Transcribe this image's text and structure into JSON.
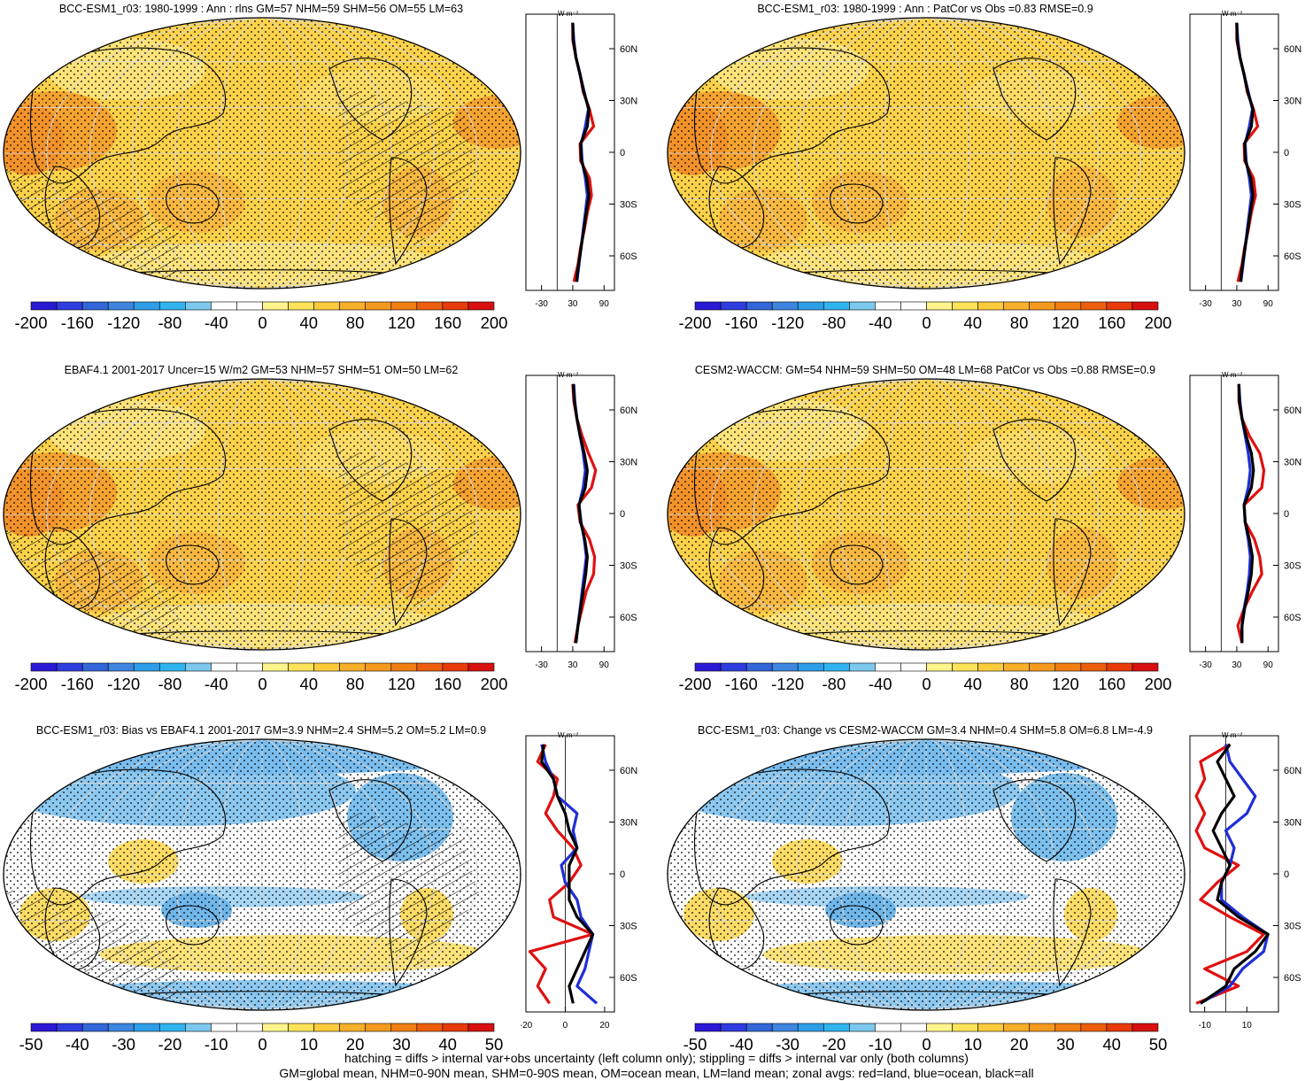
{
  "panels": [
    {
      "id": "p1",
      "title": "BCC-ESM1_r03: 1980-1999 : Ann : rlns GM=57 NHM=59 SHM=56 OM=55 LM=63",
      "field": "abs",
      "hatching": true,
      "colorbar_labels": [
        "-200",
        "-160",
        "-120",
        "-80",
        "-40",
        "0",
        "40",
        "80",
        "120",
        "160",
        "200"
      ],
      "zonal_units": "W m⁻²",
      "zonal_xticks": [
        "-30",
        "30",
        "90"
      ],
      "zonal_yticks": [
        "60N",
        "30N",
        "0",
        "30S",
        "60S"
      ]
    },
    {
      "id": "p2",
      "title": "BCC-ESM1_r03: 1980-1999 : Ann : PatCor vs Obs =0.83 RMSE=0.9",
      "field": "abs",
      "hatching": false,
      "colorbar_labels": [
        "-200",
        "-160",
        "-120",
        "-80",
        "-40",
        "0",
        "40",
        "80",
        "120",
        "160",
        "200"
      ],
      "zonal_units": "W m⁻²",
      "zonal_xticks": [
        "-30",
        "30",
        "90"
      ],
      "zonal_yticks": [
        "60N",
        "30N",
        "0",
        "30S",
        "60S"
      ]
    },
    {
      "id": "p3",
      "title": "EBAF4.1 2001-2017 Uncer=15 W/m2 GM=53 NHM=57 SHM=51 OM=50 LM=62",
      "field": "abs",
      "hatching": true,
      "colorbar_labels": [
        "-200",
        "-160",
        "-120",
        "-80",
        "-40",
        "0",
        "40",
        "80",
        "120",
        "160",
        "200"
      ],
      "zonal_units": "W m⁻²",
      "zonal_xticks": [
        "-30",
        "30",
        "90"
      ],
      "zonal_yticks": [
        "60N",
        "30N",
        "0",
        "30S",
        "60S"
      ]
    },
    {
      "id": "p4",
      "title": "CESM2-WACCM: GM=54 NHM=59 SHM=50 OM=48 LM=68 PatCor vs Obs =0.88 RMSE=0.9",
      "field": "abs",
      "hatching": false,
      "colorbar_labels": [
        "-200",
        "-160",
        "-120",
        "-80",
        "-40",
        "0",
        "40",
        "80",
        "120",
        "160",
        "200"
      ],
      "zonal_units": "W m⁻²",
      "zonal_xticks": [
        "-30",
        "30",
        "90"
      ],
      "zonal_yticks": [
        "60N",
        "30N",
        "0",
        "30S",
        "60S"
      ]
    },
    {
      "id": "p5",
      "title": "BCC-ESM1_r03: Bias vs EBAF4.1 2001-2017 GM=3.9 NHM=2.4 SHM=5.2 OM=5.2 LM=0.9",
      "field": "diff",
      "hatching": true,
      "colorbar_labels": [
        "-50",
        "-40",
        "-30",
        "-20",
        "-10",
        "0",
        "10",
        "20",
        "30",
        "40",
        "50"
      ],
      "zonal_units": "W m⁻²",
      "zonal_xticks": [
        "-20",
        "0",
        "20"
      ],
      "zonal_yticks": [
        "60N",
        "30N",
        "0",
        "30S",
        "60S"
      ]
    },
    {
      "id": "p6",
      "title": "BCC-ESM1_r03: Change vs CESM2-WACCM GM=3.4 NHM=0.4 SHM=5.8 OM=6.8 LM=-4.9",
      "field": "diff",
      "hatching": false,
      "colorbar_labels": [
        "-50",
        "-40",
        "-30",
        "-20",
        "-10",
        "0",
        "10",
        "20",
        "30",
        "40",
        "50"
      ],
      "zonal_units": "W m⁻²",
      "zonal_xticks": [
        "-10",
        "10"
      ],
      "zonal_yticks": [
        "60N",
        "30N",
        "0",
        "30S",
        "60S"
      ]
    }
  ],
  "colorbar_colors": [
    "#2b19d6",
    "#2f3ce0",
    "#3366d9",
    "#3d85de",
    "#2e9ee8",
    "#30b4f0",
    "#7cc8ee",
    "#ffffff",
    "#ffffff",
    "#fff48c",
    "#fde35a",
    "#fbcb3c",
    "#f8b02a",
    "#f59a1e",
    "#f07e12",
    "#ec5e0c",
    "#e83a0a",
    "#d81010"
  ],
  "chart_data": [
    {
      "type": "line",
      "panel": "p1",
      "title": "BCC-ESM1_r03: 1980-1999 : Ann : rlns GM=57 NHM=59 SHM=56 OM=55 LM=63",
      "ylabel": "W m⁻²",
      "xlim": [
        -60,
        110
      ],
      "ylim": [
        -80,
        80
      ],
      "latitudes": [
        -75,
        -65,
        -55,
        -45,
        -35,
        -25,
        -15,
        -5,
        5,
        15,
        25,
        35,
        45,
        55,
        65,
        75
      ],
      "series": [
        {
          "color": "#e01010",
          "values": [
            32,
            40,
            45,
            52,
            58,
            66,
            62,
            45,
            44,
            70,
            62,
            50,
            44,
            36,
            30,
            30
          ]
        },
        {
          "color": "#1f2ed6",
          "values": [
            38,
            42,
            46,
            50,
            54,
            58,
            54,
            48,
            46,
            54,
            60,
            52,
            44,
            36,
            32,
            30
          ]
        },
        {
          "color": "#000000",
          "values": [
            37,
            41,
            46,
            51,
            56,
            61,
            57,
            47,
            45,
            58,
            61,
            51,
            44,
            36,
            31,
            30
          ]
        }
      ]
    },
    {
      "type": "line",
      "panel": "p2",
      "title": "BCC-ESM1_r03: 1980-1999 : Ann : PatCor vs Obs =0.83 RMSE=0.9",
      "ylabel": "W m⁻²",
      "xlim": [
        -60,
        110
      ],
      "ylim": [
        -80,
        80
      ],
      "latitudes": [
        -75,
        -65,
        -55,
        -45,
        -35,
        -25,
        -15,
        -5,
        5,
        15,
        25,
        35,
        45,
        55,
        65,
        75
      ],
      "series": [
        {
          "color": "#e01010",
          "values": [
            32,
            40,
            45,
            52,
            58,
            66,
            62,
            45,
            44,
            70,
            62,
            50,
            44,
            36,
            30,
            30
          ]
        },
        {
          "color": "#1f2ed6",
          "values": [
            38,
            42,
            46,
            50,
            54,
            58,
            54,
            48,
            46,
            54,
            60,
            52,
            44,
            36,
            32,
            30
          ]
        },
        {
          "color": "#000000",
          "values": [
            37,
            41,
            46,
            51,
            56,
            61,
            57,
            47,
            45,
            58,
            61,
            51,
            44,
            36,
            31,
            30
          ]
        }
      ]
    },
    {
      "type": "line",
      "panel": "p3",
      "title": "EBAF4.1 2001-2017 Uncer=15 W/m2 GM=53 NHM=57 SHM=51 OM=50 LM=62",
      "ylabel": "W m⁻²",
      "xlim": [
        -60,
        110
      ],
      "ylim": [
        -80,
        80
      ],
      "latitudes": [
        -75,
        -65,
        -55,
        -45,
        -35,
        -25,
        -15,
        -5,
        5,
        15,
        25,
        35,
        45,
        55,
        65,
        75
      ],
      "series": [
        {
          "color": "#e01010",
          "values": [
            34,
            40,
            48,
            56,
            70,
            72,
            62,
            44,
            40,
            66,
            74,
            60,
            48,
            38,
            32,
            30
          ]
        },
        {
          "color": "#1f2ed6",
          "values": [
            36,
            40,
            44,
            48,
            52,
            56,
            52,
            46,
            42,
            50,
            54,
            50,
            44,
            38,
            34,
            32
          ]
        },
        {
          "color": "#000000",
          "values": [
            36,
            40,
            45,
            50,
            55,
            58,
            53,
            45,
            42,
            54,
            58,
            52,
            44,
            38,
            33,
            31
          ]
        }
      ]
    },
    {
      "type": "line",
      "panel": "p4",
      "title": "CESM2-WACCM: GM=54 NHM=59 SHM=50 OM=48 LM=68 PatCor vs Obs =0.88 RMSE=0.9",
      "ylabel": "W m⁻²",
      "xlim": [
        -60,
        110
      ],
      "ylim": [
        -80,
        80
      ],
      "latitudes": [
        -75,
        -65,
        -55,
        -45,
        -35,
        -25,
        -15,
        -5,
        5,
        15,
        25,
        35,
        45,
        55,
        65,
        75
      ],
      "series": [
        {
          "color": "#e01010",
          "values": [
            40,
            32,
            44,
            60,
            78,
            74,
            64,
            46,
            44,
            78,
            82,
            74,
            54,
            40,
            34,
            34
          ]
        },
        {
          "color": "#1f2ed6",
          "values": [
            40,
            40,
            44,
            50,
            54,
            56,
            52,
            46,
            44,
            52,
            56,
            52,
            46,
            40,
            36,
            34
          ]
        },
        {
          "color": "#000000",
          "values": [
            40,
            40,
            45,
            52,
            58,
            60,
            54,
            46,
            44,
            58,
            62,
            58,
            48,
            40,
            35,
            34
          ]
        }
      ]
    },
    {
      "type": "line",
      "panel": "p5",
      "title": "BCC-ESM1_r03: Bias vs EBAF4.1 2001-2017 GM=3.9 NHM=2.4 SHM=5.2 OM=5.2 LM=0.9",
      "ylabel": "W m⁻²",
      "xlim": [
        -20,
        25
      ],
      "ylim": [
        -80,
        80
      ],
      "latitudes": [
        -75,
        -65,
        -55,
        -45,
        -35,
        -25,
        -15,
        -5,
        5,
        15,
        25,
        35,
        45,
        55,
        65,
        75
      ],
      "series": [
        {
          "color": "#e01010",
          "values": [
            -8,
            -14,
            -10,
            -18,
            14,
            -6,
            -8,
            2,
            8,
            4,
            -4,
            -10,
            -6,
            -4,
            -14,
            -10
          ]
        },
        {
          "color": "#1f2ed6",
          "values": [
            16,
            6,
            10,
            12,
            14,
            8,
            6,
            0,
            -2,
            6,
            4,
            6,
            -4,
            -6,
            -10,
            -12
          ]
        },
        {
          "color": "#000000",
          "values": [
            4,
            2,
            6,
            10,
            14,
            6,
            2,
            2,
            2,
            6,
            2,
            0,
            -4,
            -6,
            -12,
            -11
          ]
        }
      ]
    },
    {
      "type": "line",
      "panel": "p6",
      "title": "BCC-ESM1_r03: Change vs CESM2-WACCM GM=3.4 NHM=0.4 SHM=5.8 OM=6.8 LM=-4.9",
      "ylabel": "W m⁻²",
      "xlim": [
        -17,
        25
      ],
      "ylim": [
        -80,
        80
      ],
      "latitudes": [
        -75,
        -65,
        -55,
        -45,
        -35,
        -25,
        -15,
        -5,
        5,
        15,
        25,
        35,
        45,
        55,
        65,
        75
      ],
      "series": [
        {
          "color": "#e01010",
          "values": [
            -14,
            6,
            -10,
            10,
            18,
            2,
            -12,
            -4,
            6,
            -10,
            -14,
            -10,
            -14,
            -10,
            -12,
            2
          ]
        },
        {
          "color": "#1f2ed6",
          "values": [
            -12,
            2,
            8,
            18,
            20,
            8,
            -2,
            -2,
            2,
            4,
            0,
            10,
            14,
            8,
            2,
            0
          ]
        },
        {
          "color": "#000000",
          "values": [
            -12,
            0,
            4,
            14,
            20,
            6,
            -4,
            -2,
            2,
            -2,
            -6,
            -2,
            4,
            0,
            -4,
            2
          ]
        }
      ]
    }
  ],
  "footer": {
    "line1": "hatching = diffs > internal var+obs uncertainty (left column only); stippling = diffs > internal var only (both columns)",
    "line2": "GM=global mean, NHM=0-90N mean, SHM=0-90S mean, OM=ocean mean, LM=land mean; zonal avgs: red=land, blue=ocean, black=all"
  }
}
